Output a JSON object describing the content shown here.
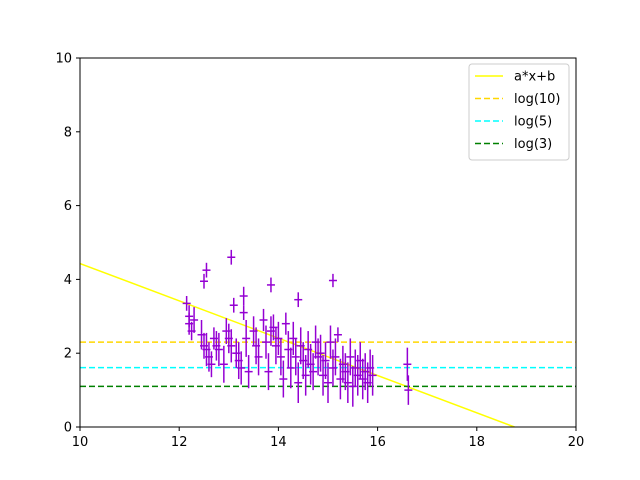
{
  "chart_data": {
    "type": "scatter",
    "title": "",
    "xlabel": "",
    "ylabel": "",
    "xlim": [
      10,
      20
    ],
    "ylim": [
      0,
      10
    ],
    "xticks": [
      10,
      12,
      14,
      16,
      18,
      20
    ],
    "yticks": [
      0,
      2,
      4,
      6,
      8,
      10
    ],
    "grid": false,
    "legend_position": "top-right",
    "series": [
      {
        "name": "a*x+b",
        "kind": "line",
        "style": "solid",
        "color": "#ffff00",
        "x": [
          10,
          18.76
        ],
        "y": [
          4.43,
          0.0
        ]
      },
      {
        "name": "log(10)",
        "kind": "hline",
        "style": "dashed",
        "color": "#ffd700",
        "y": 2.3
      },
      {
        "name": "log(5)",
        "kind": "hline",
        "style": "dashed",
        "color": "#00ffff",
        "y": 1.61
      },
      {
        "name": "log(3)",
        "kind": "hline",
        "style": "dashed",
        "color": "#008000",
        "y": 1.1
      }
    ],
    "points": {
      "kind": "errorbar",
      "color": "#9400d3",
      "x": [
        12.15,
        12.2,
        12.25,
        12.3,
        12.45,
        12.5,
        12.55,
        12.6,
        12.65,
        12.7,
        12.75,
        12.8,
        12.9,
        12.95,
        13.0,
        13.05,
        13.1,
        13.15,
        13.2,
        13.25,
        13.3,
        13.35,
        13.4,
        13.5,
        13.55,
        13.6,
        13.7,
        13.75,
        13.8,
        13.85,
        13.9,
        13.95,
        14.0,
        14.05,
        14.1,
        14.15,
        14.2,
        14.25,
        14.3,
        14.35,
        14.4,
        14.45,
        14.5,
        14.55,
        14.6,
        14.65,
        14.7,
        14.75,
        14.8,
        14.85,
        14.9,
        14.95,
        15.0,
        15.05,
        15.1,
        15.15,
        15.2,
        15.25,
        15.3,
        15.35,
        15.4,
        15.45,
        15.5,
        15.55,
        15.6,
        15.65,
        15.7,
        15.75,
        15.8,
        15.85,
        15.9,
        16.6,
        16.62,
        13.85,
        14.4,
        15.1,
        12.5,
        12.55,
        13.05,
        12.2,
        13.3
      ],
      "y": [
        3.35,
        3.0,
        2.6,
        2.9,
        2.5,
        2.2,
        2.1,
        1.9,
        1.7,
        2.4,
        2.2,
        2.1,
        1.7,
        2.6,
        2.4,
        2.2,
        3.3,
        2.0,
        1.8,
        1.6,
        3.1,
        2.4,
        1.5,
        2.6,
        2.2,
        1.9,
        2.9,
        2.3,
        1.5,
        2.6,
        2.7,
        2.2,
        2.4,
        1.9,
        1.3,
        2.8,
        2.1,
        1.6,
        2.4,
        1.9,
        1.2,
        2.2,
        1.8,
        1.4,
        2.1,
        1.7,
        1.5,
        2.3,
        1.9,
        2.0,
        1.4,
        1.8,
        1.2,
        2.3,
        1.6,
        1.9,
        2.5,
        1.3,
        1.7,
        1.5,
        1.2,
        1.9,
        1.1,
        1.6,
        1.4,
        1.8,
        1.3,
        1.5,
        1.2,
        1.6,
        1.4,
        1.7,
        1.0,
        3.85,
        3.45,
        3.97,
        3.95,
        4.25,
        4.6,
        2.8,
        3.55
      ],
      "yerr": [
        0.2,
        0.3,
        0.25,
        0.35,
        0.4,
        0.35,
        0.45,
        0.4,
        0.35,
        0.3,
        0.4,
        0.45,
        0.5,
        0.35,
        0.4,
        0.45,
        0.2,
        0.4,
        0.5,
        0.45,
        0.2,
        0.5,
        0.45,
        0.4,
        0.5,
        0.5,
        0.3,
        0.45,
        0.5,
        0.4,
        0.35,
        0.5,
        0.45,
        0.5,
        0.5,
        0.3,
        0.5,
        0.55,
        0.45,
        0.5,
        0.55,
        0.5,
        0.5,
        0.55,
        0.5,
        0.55,
        0.5,
        0.45,
        0.5,
        0.5,
        0.55,
        0.5,
        0.55,
        0.45,
        0.5,
        0.5,
        0.2,
        0.55,
        0.5,
        0.5,
        0.55,
        0.5,
        0.55,
        0.5,
        0.55,
        0.5,
        0.55,
        0.5,
        0.55,
        0.5,
        0.55,
        0.45,
        0.4,
        0.2,
        0.2,
        0.18,
        0.2,
        0.2,
        0.2,
        0.3,
        0.25
      ]
    }
  }
}
